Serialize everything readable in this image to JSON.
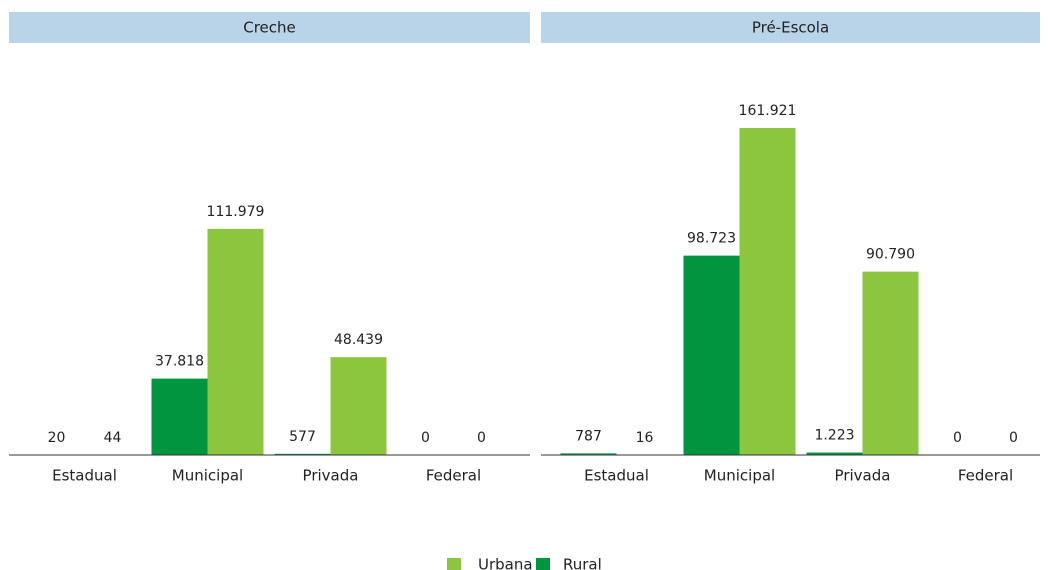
{
  "chart_data": [
    {
      "type": "bar",
      "title": "Creche",
      "categories": [
        "Estadual",
        "Municipal",
        "Privada",
        "Federal"
      ],
      "series": [
        {
          "name": "Rural",
          "color": "#009640",
          "values": [
            20,
            37818,
            577,
            0
          ],
          "value_labels": [
            "20",
            "37.818",
            "577",
            "0"
          ]
        },
        {
          "name": "Urbana",
          "color": "#8cc63f",
          "values": [
            44,
            111979,
            48439,
            0
          ],
          "value_labels": [
            "44",
            "111.979",
            "48.439",
            "0"
          ]
        }
      ]
    },
    {
      "type": "bar",
      "title": "Pré-Escola",
      "categories": [
        "Estadual",
        "Municipal",
        "Privada",
        "Federal"
      ],
      "series": [
        {
          "name": "Rural",
          "color": "#009640",
          "values": [
            787,
            98723,
            1223,
            0
          ],
          "value_labels": [
            "787",
            "98.723",
            "1.223",
            "0"
          ]
        },
        {
          "name": "Urbana",
          "color": "#8cc63f",
          "values": [
            16,
            161921,
            90790,
            0
          ],
          "value_labels": [
            "16",
            "161.921",
            "90.790",
            "0"
          ]
        }
      ]
    }
  ]
}
